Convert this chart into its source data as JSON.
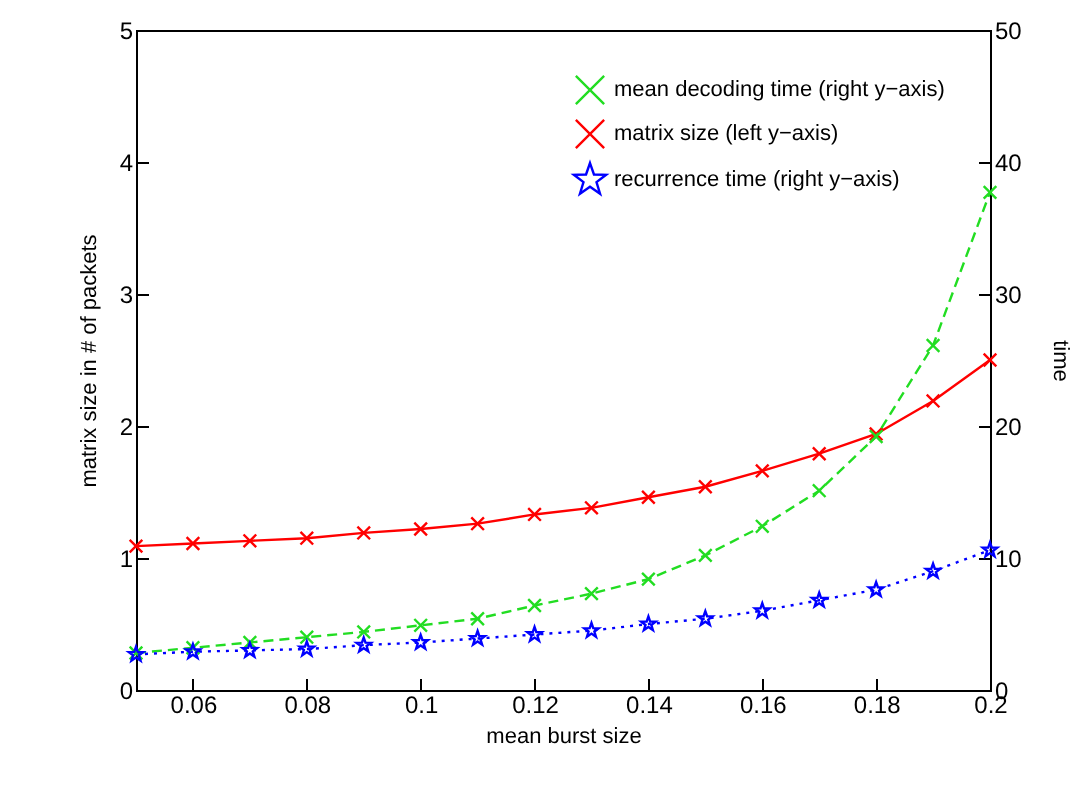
{
  "chart_data": {
    "type": "line",
    "xlabel": "mean burst size",
    "ylabel": "matrix size in # of packets",
    "y2label": "time",
    "x": [
      0.05,
      0.06,
      0.07,
      0.08,
      0.09,
      0.1,
      0.11,
      0.12,
      0.13,
      0.14,
      0.15,
      0.16,
      0.17,
      0.18,
      0.19,
      0.2
    ],
    "xlim": [
      0.05,
      0.2
    ],
    "xticks": [
      0.06,
      0.08,
      0.1,
      0.12,
      0.14,
      0.16,
      0.18,
      0.2
    ],
    "ylim": [
      0,
      5
    ],
    "yticks": [
      0,
      1,
      2,
      3,
      4,
      5
    ],
    "y2lim": [
      0,
      50
    ],
    "y2ticks": [
      0,
      10,
      20,
      30,
      40,
      50
    ],
    "legend": "top right",
    "grid": false,
    "series": [
      {
        "name": "mean decoding time (right y−axis)",
        "color": "#22dd22",
        "axis": "y2",
        "marker": "cross",
        "line_style": "dashed",
        "values": [
          2.8,
          3.2,
          3.6,
          4.0,
          4.4,
          4.9,
          5.4,
          6.4,
          7.3,
          8.4,
          10.2,
          12.4,
          15.1,
          19.2,
          26.1,
          37.7
        ]
      },
      {
        "name": "matrix size (left y−axis)",
        "color": "#ff0000",
        "marker": "cross",
        "line_style": "solid",
        "values": [
          1.09,
          1.11,
          1.13,
          1.15,
          1.19,
          1.22,
          1.26,
          1.33,
          1.38,
          1.46,
          1.54,
          1.66,
          1.79,
          1.94,
          2.19,
          2.5
        ]
      },
      {
        "name": "recurrence time (right y−axis)",
        "color": "#0000ff",
        "axis": "y2",
        "marker": "star",
        "line_style": "dotted",
        "values": [
          2.7,
          2.9,
          3.0,
          3.1,
          3.4,
          3.6,
          3.9,
          4.2,
          4.5,
          5.0,
          5.4,
          6.0,
          6.8,
          7.6,
          9.0,
          10.6
        ]
      }
    ]
  }
}
